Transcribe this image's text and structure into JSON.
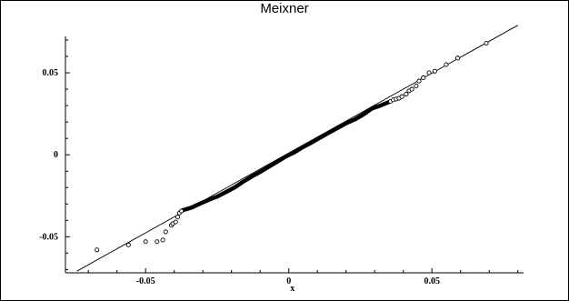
{
  "chart_data": {
    "type": "scatter",
    "title": "Meixner",
    "xlabel": "x",
    "ylabel": "",
    "xlim": [
      -0.078,
      0.082
    ],
    "ylim": [
      -0.072,
      0.08
    ],
    "x_ticks": [
      -0.05,
      0,
      0.05
    ],
    "y_ticks": [
      -0.05,
      0,
      0.05
    ],
    "x_tick_labels": [
      "-0.05",
      "0",
      "0.05"
    ],
    "y_tick_labels": [
      "-0.05",
      "0",
      "0.05"
    ],
    "reference_line": {
      "x": [
        -0.074,
        0.08
      ],
      "y": [
        -0.071,
        0.079
      ]
    },
    "points": [
      {
        "x": -0.067,
        "y": -0.058
      },
      {
        "x": -0.056,
        "y": -0.055
      },
      {
        "x": -0.05,
        "y": -0.053
      },
      {
        "x": -0.046,
        "y": -0.053
      },
      {
        "x": -0.044,
        "y": -0.052
      },
      {
        "x": -0.043,
        "y": -0.047
      },
      {
        "x": -0.041,
        "y": -0.043
      },
      {
        "x": -0.0405,
        "y": -0.042
      },
      {
        "x": -0.0395,
        "y": -0.041
      },
      {
        "x": -0.0388,
        "y": -0.038
      },
      {
        "x": -0.0382,
        "y": -0.0355
      },
      {
        "x": -0.0375,
        "y": -0.0343
      },
      {
        "x": 0.0355,
        "y": 0.0325
      },
      {
        "x": 0.0365,
        "y": 0.0335
      },
      {
        "x": 0.0375,
        "y": 0.034
      },
      {
        "x": 0.0385,
        "y": 0.0345
      },
      {
        "x": 0.0395,
        "y": 0.0355
      },
      {
        "x": 0.041,
        "y": 0.037
      },
      {
        "x": 0.042,
        "y": 0.039
      },
      {
        "x": 0.043,
        "y": 0.04
      },
      {
        "x": 0.0445,
        "y": 0.042
      },
      {
        "x": 0.0455,
        "y": 0.045
      },
      {
        "x": 0.047,
        "y": 0.047
      },
      {
        "x": 0.049,
        "y": 0.05
      },
      {
        "x": 0.051,
        "y": 0.051
      },
      {
        "x": 0.055,
        "y": 0.055
      },
      {
        "x": 0.059,
        "y": 0.059
      },
      {
        "x": 0.069,
        "y": 0.068
      }
    ],
    "dense_path": {
      "x": [
        -0.037,
        -0.034,
        -0.031,
        -0.028,
        -0.025,
        -0.022,
        -0.019,
        -0.016,
        -0.013,
        -0.01,
        -0.007,
        -0.004,
        -0.001,
        0.002,
        0.005,
        0.008,
        0.011,
        0.014,
        0.017,
        0.02,
        0.023,
        0.026,
        0.029,
        0.032,
        0.035
      ],
      "y": [
        -0.0338,
        -0.0322,
        -0.0298,
        -0.0275,
        -0.0255,
        -0.0228,
        -0.02,
        -0.0165,
        -0.0133,
        -0.0105,
        -0.0073,
        -0.0042,
        -0.001,
        0.0015,
        0.0048,
        0.0075,
        0.0105,
        0.0135,
        0.0163,
        0.0192,
        0.0215,
        0.0245,
        0.0282,
        0.03,
        0.0322
      ]
    }
  }
}
